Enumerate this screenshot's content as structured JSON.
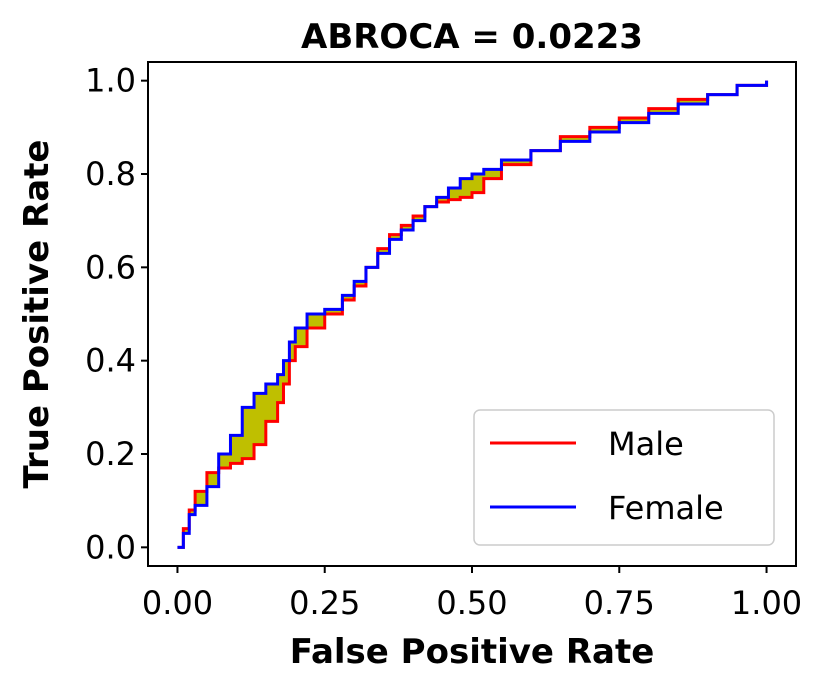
{
  "chart_data": {
    "type": "line",
    "title": "ABROCA = 0.0223",
    "xlabel": "False Positive Rate",
    "ylabel": "True Positive Rate",
    "xlim": [
      -0.05,
      1.05
    ],
    "ylim": [
      -0.04,
      1.04
    ],
    "xticks": [
      0.0,
      0.25,
      0.5,
      0.75,
      1.0
    ],
    "xtick_labels": [
      "0.00",
      "0.25",
      "0.50",
      "0.75",
      "1.00"
    ],
    "yticks": [
      0.0,
      0.2,
      0.4,
      0.6,
      0.8,
      1.0
    ],
    "ytick_labels": [
      "0.0",
      "0.2",
      "0.4",
      "0.6",
      "0.8",
      "1.0"
    ],
    "grid": false,
    "legend_position": "lower-right",
    "fill_between_color": "#bfbf00",
    "series": [
      {
        "name": "Male",
        "color": "#ff0000",
        "x": [
          0.0,
          0.01,
          0.02,
          0.03,
          0.05,
          0.07,
          0.09,
          0.11,
          0.13,
          0.15,
          0.17,
          0.18,
          0.19,
          0.2,
          0.22,
          0.25,
          0.28,
          0.3,
          0.32,
          0.34,
          0.36,
          0.38,
          0.4,
          0.42,
          0.44,
          0.46,
          0.48,
          0.5,
          0.52,
          0.55,
          0.6,
          0.65,
          0.7,
          0.75,
          0.8,
          0.85,
          0.9,
          0.95,
          1.0
        ],
        "y": [
          0.0,
          0.04,
          0.08,
          0.12,
          0.16,
          0.17,
          0.18,
          0.19,
          0.22,
          0.27,
          0.31,
          0.35,
          0.4,
          0.43,
          0.47,
          0.5,
          0.53,
          0.56,
          0.6,
          0.64,
          0.67,
          0.69,
          0.71,
          0.73,
          0.74,
          0.745,
          0.75,
          0.76,
          0.79,
          0.82,
          0.85,
          0.88,
          0.9,
          0.92,
          0.94,
          0.96,
          0.97,
          0.99,
          1.0
        ]
      },
      {
        "name": "Female",
        "color": "#0000ff",
        "x": [
          0.0,
          0.01,
          0.02,
          0.03,
          0.05,
          0.07,
          0.09,
          0.11,
          0.13,
          0.15,
          0.17,
          0.18,
          0.19,
          0.2,
          0.22,
          0.25,
          0.28,
          0.3,
          0.32,
          0.34,
          0.36,
          0.38,
          0.4,
          0.42,
          0.44,
          0.46,
          0.48,
          0.5,
          0.52,
          0.55,
          0.6,
          0.65,
          0.7,
          0.75,
          0.8,
          0.85,
          0.9,
          0.95,
          1.0
        ],
        "y": [
          0.0,
          0.03,
          0.07,
          0.09,
          0.13,
          0.2,
          0.24,
          0.3,
          0.33,
          0.35,
          0.37,
          0.4,
          0.44,
          0.47,
          0.5,
          0.51,
          0.54,
          0.57,
          0.6,
          0.63,
          0.66,
          0.68,
          0.7,
          0.73,
          0.75,
          0.77,
          0.79,
          0.8,
          0.81,
          0.83,
          0.85,
          0.87,
          0.89,
          0.91,
          0.93,
          0.95,
          0.97,
          0.99,
          1.0
        ]
      }
    ]
  }
}
